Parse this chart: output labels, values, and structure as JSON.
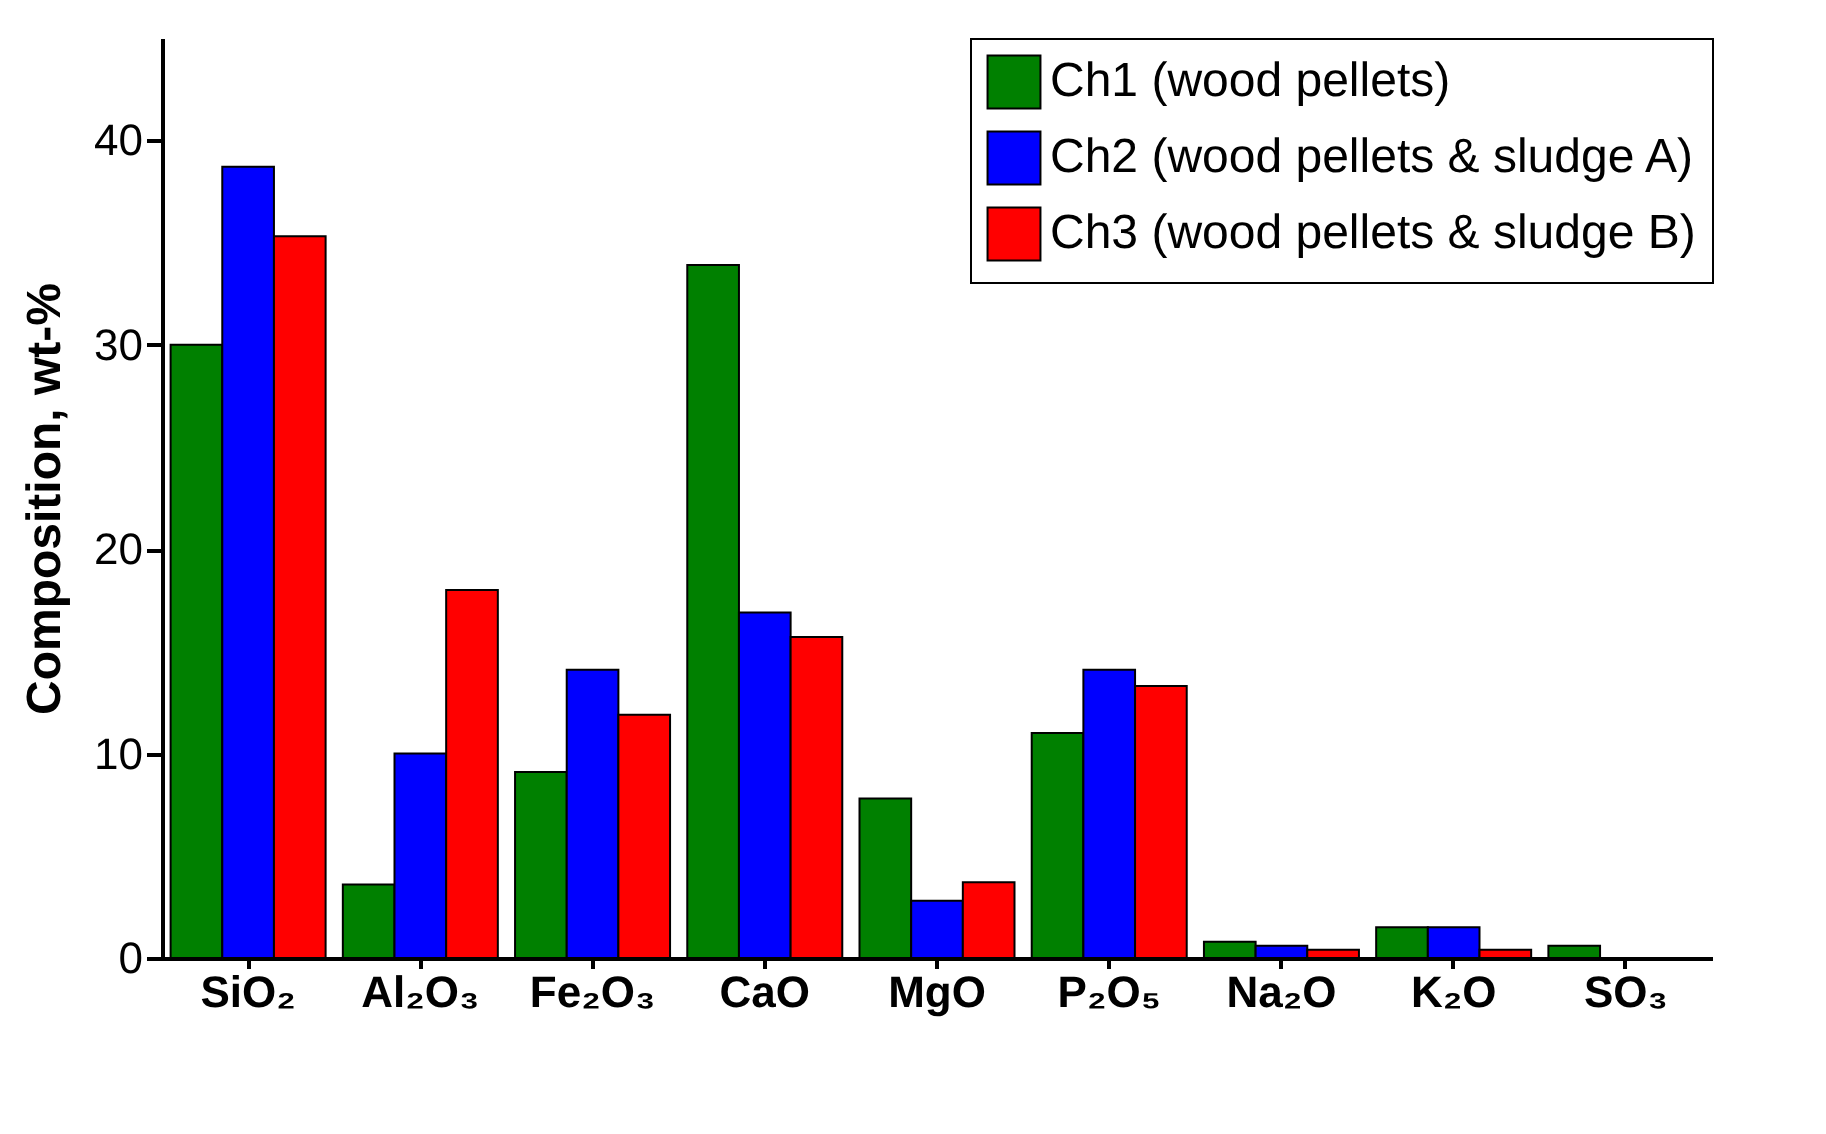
{
  "chart_data": {
    "type": "bar",
    "ylabel": "Composition, wt-%",
    "categories": [
      "SiO₂",
      "Al₂O₃",
      "Fe₂O₃",
      "CaO",
      "MgO",
      "P₂O₅",
      "Na₂O",
      "K₂O",
      "SO₃"
    ],
    "series": [
      {
        "name": "Ch1 (wood pellets)",
        "color": "#008000",
        "values": [
          30.0,
          3.6,
          9.1,
          33.9,
          7.8,
          11.0,
          0.8,
          1.5,
          0.6
        ]
      },
      {
        "name": "Ch2 (wood pellets & sludge A)",
        "color": "#0000ff",
        "values": [
          38.7,
          10.0,
          14.1,
          16.9,
          2.8,
          14.1,
          0.6,
          1.5,
          null
        ]
      },
      {
        "name": "Ch3 (wood pellets & sludge B)",
        "color": "#ff0000",
        "values": [
          35.3,
          18.0,
          11.9,
          15.7,
          3.7,
          13.3,
          0.4,
          0.4,
          null
        ]
      }
    ],
    "ylim": [
      0,
      45
    ],
    "yticks": [
      0,
      10,
      20,
      30,
      40
    ],
    "grid": false,
    "legend": "top right"
  }
}
